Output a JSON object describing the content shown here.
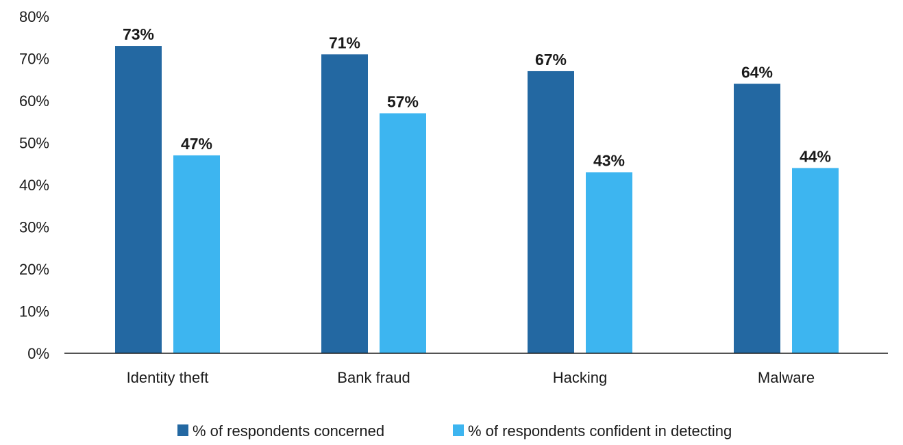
{
  "chart_data": {
    "type": "bar",
    "title": "",
    "xlabel": "",
    "ylabel": "",
    "categories": [
      "Identity theft",
      "Bank fraud",
      "Hacking",
      "Malware"
    ],
    "series": [
      {
        "name": "% of respondents concerned",
        "values": [
          73,
          71,
          67,
          64
        ],
        "color": "#2368a2"
      },
      {
        "name": "% of respondents confident in detecting",
        "values": [
          47,
          57,
          43,
          44
        ],
        "color": "#3db5f0"
      }
    ],
    "ylim": [
      0,
      80
    ],
    "yticks": [
      "0%",
      "10%",
      "20%",
      "30%",
      "40%",
      "50%",
      "60%",
      "70%",
      "80%"
    ],
    "data_labels": [
      [
        "73%",
        "71%",
        "67%",
        "64%"
      ],
      [
        "47%",
        "57%",
        "43%",
        "44%"
      ]
    ],
    "grid": false,
    "legend": "bottom-center"
  }
}
